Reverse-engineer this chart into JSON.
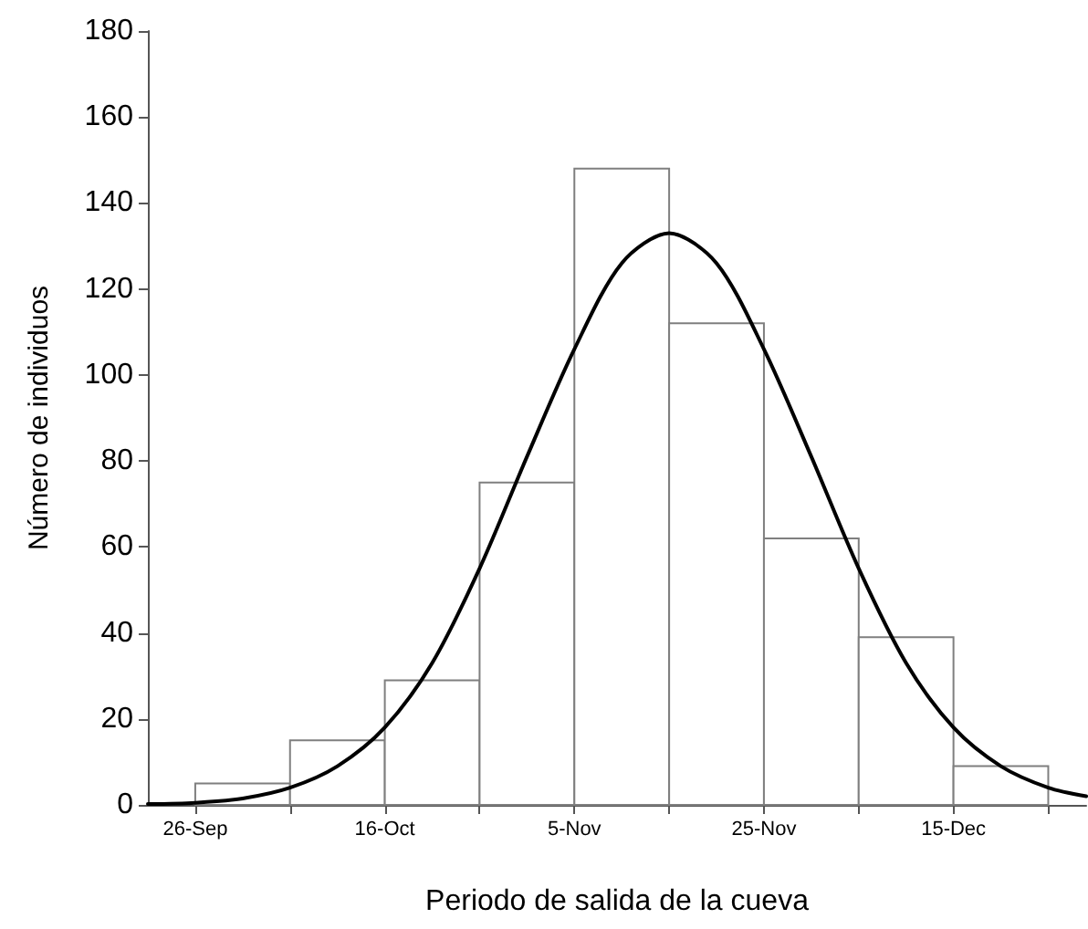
{
  "chart_data": {
    "type": "histogram",
    "xlabel": "Periodo de salida de la cueva",
    "ylabel": "Número de individuos",
    "bins": [
      "--09-26",
      "--10-06",
      "--10-16",
      "--10-26",
      "--11-05",
      "--11-15",
      "--11-25",
      "--12-05",
      "--12-15",
      "--12-25"
    ],
    "values": [
      5,
      15,
      29,
      75,
      148,
      112,
      62,
      39,
      9
    ],
    "color": "#ffffff",
    "series": [
      {
        "type": "line",
        "color": "#000000",
        "x": [
          "--09-21",
          "--09-26",
          "--10-01",
          "--10-06",
          "--10-11",
          "--10-16",
          "--10-21",
          "--10-26",
          "--10-31",
          "--11-05",
          "--11-10",
          "--11-15",
          "--11-20",
          "--11-25",
          "--11-30",
          "--12-05",
          "--12-10",
          "--12-15",
          "--12-20",
          "--12-25",
          "--12-29"
        ],
        "values": [
          0.2,
          0.5,
          1.5,
          4,
          9,
          18,
          33,
          55,
          81,
          106,
          126,
          133,
          126,
          106,
          81,
          55,
          33,
          18,
          9,
          4,
          2
        ]
      }
    ],
    "xlim": [
      "--09-21",
      "--12-29"
    ],
    "xticks": [
      {
        "value": "--09-26",
        "label": "26-Sep"
      },
      {
        "value": "--10-06",
        "label": null
      },
      {
        "value": "--10-16",
        "label": "16-Oct"
      },
      {
        "value": "--10-26",
        "label": null
      },
      {
        "value": "--11-05",
        "label": "5-Nov"
      },
      {
        "value": "--11-15",
        "label": null
      },
      {
        "value": "--11-25",
        "label": "25-Nov"
      },
      {
        "value": "--12-05",
        "label": null
      },
      {
        "value": "--12-15",
        "label": "15-Dec"
      },
      {
        "value": "--12-25",
        "label": null
      }
    ],
    "ylim": [
      0,
      180
    ],
    "yticks": [
      0,
      20,
      40,
      60,
      80,
      100,
      120,
      140,
      160,
      180
    ],
    "grid": false,
    "marker": "none",
    "line_style": "solid"
  }
}
